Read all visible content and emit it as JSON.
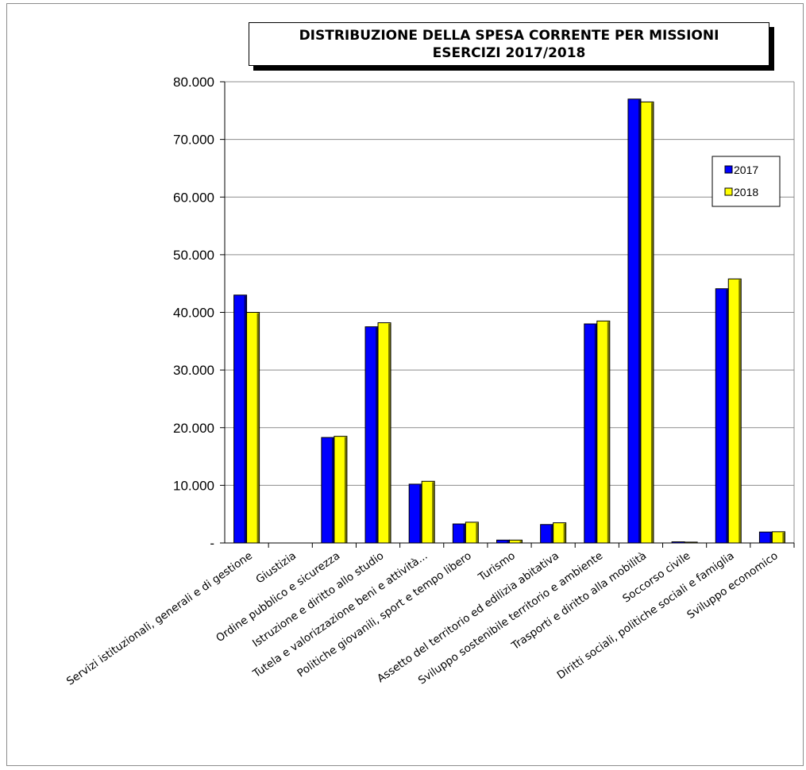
{
  "chart_data": {
    "type": "bar",
    "title": "DISTRIBUZIONE DELLA SPESA CORRENTE PER MISSIONI",
    "subtitle": "ESERCIZI 2017/2018",
    "categories": [
      "Servizi istituzionali, generali e di gestione",
      "Giustizia",
      "Ordine pubblico e sicurezza",
      "Istruzione e diritto allo studio",
      "Tutela e valorizzazione beni e attività...",
      "Politiche giovanili, sport e tempo libero",
      "Turismo",
      "Assetto del territorio ed edilizia abitativa",
      "Sviluppo sostenibile territorio e ambiente",
      "Trasporti e diritto alla mobilità",
      "Soccorso civile",
      "Diritti sociali, politiche sociali e famiglia",
      "Sviluppo economico"
    ],
    "series": [
      {
        "name": "2017",
        "color": "#0000ff",
        "values": [
          43000,
          0,
          18300,
          37500,
          10200,
          3300,
          500,
          3200,
          38000,
          77000,
          200,
          44100,
          1900
        ]
      },
      {
        "name": "2018",
        "color": "#ffff00",
        "values": [
          40000,
          0,
          18500,
          38200,
          10700,
          3600,
          500,
          3500,
          38500,
          76500,
          150,
          45800,
          1950
        ]
      }
    ],
    "y_ticks": [
      "-",
      "10.000",
      "20.000",
      "30.000",
      "40.000",
      "50.000",
      "60.000",
      "70.000",
      "80.000"
    ],
    "ylim": [
      0,
      80000
    ],
    "grid": true,
    "legend_position": "right"
  }
}
